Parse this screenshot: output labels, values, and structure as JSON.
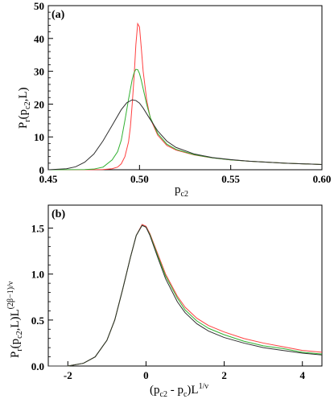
{
  "chart_data": [
    {
      "type": "line",
      "panel_label": "(a)",
      "xlabel": {
        "main": "p",
        "sub": "c2"
      },
      "ylabel": {
        "main": "P",
        "sub": "r",
        "rest": "(p",
        "sub2": "c2",
        "rest2": ",L)"
      },
      "xlim": [
        0.45,
        0.6
      ],
      "ylim": [
        0,
        50
      ],
      "xticks": [
        "0.45",
        "0.50",
        "0.55",
        "0.60"
      ],
      "yticks": [
        "0",
        "10",
        "20",
        "30",
        "40",
        "50"
      ],
      "series": [
        {
          "color": "#ff4040",
          "x": [
            0.45,
            0.47,
            0.48,
            0.485,
            0.488,
            0.49,
            0.492,
            0.494,
            0.495,
            0.496,
            0.497,
            0.498,
            0.499,
            0.5,
            0.501,
            0.502,
            0.504,
            0.506,
            0.51,
            0.515,
            0.52,
            0.53,
            0.54,
            0.55,
            0.56,
            0.58,
            0.6
          ],
          "y": [
            0,
            0,
            0.05,
            0.3,
            0.8,
            1.8,
            4,
            8.5,
            13,
            20,
            28,
            38,
            44.5,
            43.5,
            37,
            30,
            21,
            15.5,
            10.5,
            7.4,
            6,
            4.5,
            3.6,
            3,
            2.6,
            2,
            1.6
          ]
        },
        {
          "color": "#30b030",
          "x": [
            0.45,
            0.47,
            0.475,
            0.48,
            0.485,
            0.488,
            0.49,
            0.492,
            0.494,
            0.496,
            0.497,
            0.498,
            0.499,
            0.5,
            0.501,
            0.502,
            0.504,
            0.506,
            0.51,
            0.515,
            0.52,
            0.53,
            0.54,
            0.55,
            0.56,
            0.58,
            0.6
          ],
          "y": [
            0,
            0.05,
            0.2,
            0.8,
            3,
            5.5,
            9,
            15,
            21.5,
            27.5,
            29.5,
            30.6,
            30.5,
            29.3,
            27.2,
            24.7,
            19.8,
            15.8,
            11,
            7.8,
            6.2,
            4.6,
            3.6,
            3,
            2.6,
            2,
            1.6
          ]
        },
        {
          "color": "#303030",
          "x": [
            0.45,
            0.46,
            0.465,
            0.47,
            0.475,
            0.48,
            0.485,
            0.49,
            0.493,
            0.496,
            0.498,
            0.5,
            0.502,
            0.505,
            0.51,
            0.515,
            0.52,
            0.53,
            0.54,
            0.55,
            0.56,
            0.58,
            0.6
          ],
          "y": [
            0,
            0.3,
            0.9,
            2.3,
            4.8,
            8.8,
            13.5,
            18.3,
            20.4,
            21.3,
            21.1,
            20.3,
            18.8,
            16.1,
            11.8,
            8.7,
            6.8,
            4.8,
            3.7,
            3.1,
            2.6,
            2,
            1.6
          ]
        }
      ]
    },
    {
      "type": "line",
      "panel_label": "(b)",
      "xlabel": {
        "pre": "(p",
        "sub": "c2",
        "mid": " - p",
        "sub2": "c",
        "post": ")L",
        "sup": "1/ν"
      },
      "ylabel": {
        "main": "P",
        "sub": "r",
        "rest": "(p",
        "sub2": "c2",
        "rest2": ",L)L",
        "sup": "(2β−1)/ν"
      },
      "xlim": [
        -2.5,
        4.5
      ],
      "ylim": [
        0,
        1.75
      ],
      "xticks": [
        "-2",
        "0",
        "2",
        "4"
      ],
      "yticks": [
        "0.0",
        "0.5",
        "1.0",
        "1.5"
      ],
      "series": [
        {
          "color": "#ff4040",
          "x": [
            -2.5,
            -2.0,
            -1.6,
            -1.3,
            -1.0,
            -0.8,
            -0.6,
            -0.4,
            -0.25,
            -0.1,
            0.0,
            0.1,
            0.3,
            0.5,
            0.8,
            1.0,
            1.3,
            1.6,
            2.0,
            2.5,
            3.0,
            3.5,
            4.0,
            4.5
          ],
          "y": [
            0.0,
            0.0,
            0.03,
            0.1,
            0.28,
            0.5,
            0.83,
            1.18,
            1.42,
            1.54,
            1.52,
            1.44,
            1.22,
            1.0,
            0.76,
            0.64,
            0.52,
            0.44,
            0.37,
            0.3,
            0.25,
            0.21,
            0.17,
            0.15
          ]
        },
        {
          "color": "#30b030",
          "x": [
            -2.5,
            -2.0,
            -1.6,
            -1.3,
            -1.0,
            -0.8,
            -0.6,
            -0.4,
            -0.25,
            -0.1,
            0.0,
            0.1,
            0.3,
            0.5,
            0.8,
            1.0,
            1.3,
            1.6,
            2.0,
            2.5,
            3.0,
            3.5,
            4.0,
            4.5
          ],
          "y": [
            0.0,
            0.0,
            0.03,
            0.1,
            0.28,
            0.5,
            0.83,
            1.18,
            1.42,
            1.53,
            1.51,
            1.43,
            1.2,
            0.98,
            0.74,
            0.61,
            0.49,
            0.41,
            0.34,
            0.27,
            0.22,
            0.19,
            0.15,
            0.13
          ]
        },
        {
          "color": "#303030",
          "x": [
            -2.5,
            -2.0,
            -1.6,
            -1.3,
            -1.0,
            -0.8,
            -0.6,
            -0.4,
            -0.25,
            -0.1,
            0.0,
            0.1,
            0.3,
            0.5,
            0.8,
            1.0,
            1.3,
            1.6,
            2.0,
            2.5,
            3.0,
            3.5,
            4.0,
            4.5
          ],
          "y": [
            0.0,
            0.0,
            0.03,
            0.1,
            0.28,
            0.5,
            0.83,
            1.18,
            1.42,
            1.53,
            1.51,
            1.42,
            1.18,
            0.95,
            0.7,
            0.58,
            0.46,
            0.38,
            0.31,
            0.25,
            0.2,
            0.17,
            0.14,
            0.12
          ]
        }
      ]
    }
  ]
}
